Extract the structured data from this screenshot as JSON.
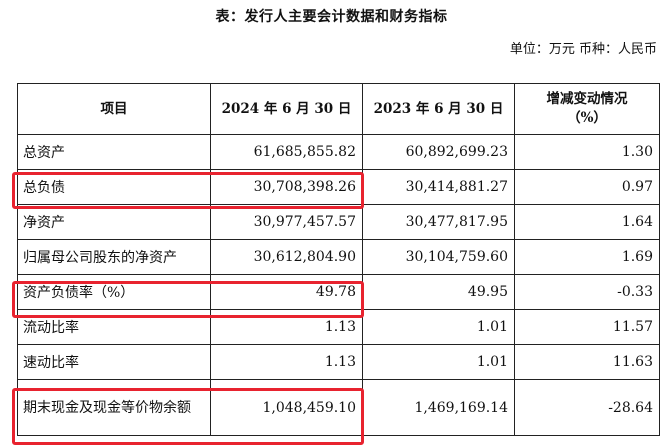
{
  "document": {
    "title": "表：发行人主要会计数据和财务指标",
    "unit_note": "单位：万元  币种：人民币"
  },
  "table": {
    "headers": [
      "项目",
      "2024 年 6 月 30 日",
      "2023 年 6 月 30 日",
      "增减变动情况",
      "（%）"
    ],
    "rows": [
      {
        "item": "总资产",
        "v2024": "61,685,855.82",
        "v2023": "60,892,699.23",
        "change": "1.30"
      },
      {
        "item": "总负债",
        "v2024": "30,708,398.26",
        "v2023": "30,414,881.27",
        "change": "0.97"
      },
      {
        "item": "净资产",
        "v2024": "30,977,457.57",
        "v2023": "30,477,817.95",
        "change": "1.64"
      },
      {
        "item": "归属母公司股东的净资产",
        "v2024": "30,612,804.90",
        "v2023": "30,104,759.60",
        "change": "1.69"
      },
      {
        "item": "资产负债率（%）",
        "v2024": "49.78",
        "v2023": "49.95",
        "change": "-0.33"
      },
      {
        "item": "流动比率",
        "v2024": "1.13",
        "v2023": "1.01",
        "change": "11.57"
      },
      {
        "item": "速动比率",
        "v2024": "1.13",
        "v2023": "1.01",
        "change": "11.63"
      },
      {
        "item": "期末现金及现金等价物余额",
        "v2024": "1,048,459.10",
        "v2023": "1,469,169.14",
        "change": "-28.64"
      }
    ]
  },
  "highlight": {
    "color": "#e8232f"
  }
}
